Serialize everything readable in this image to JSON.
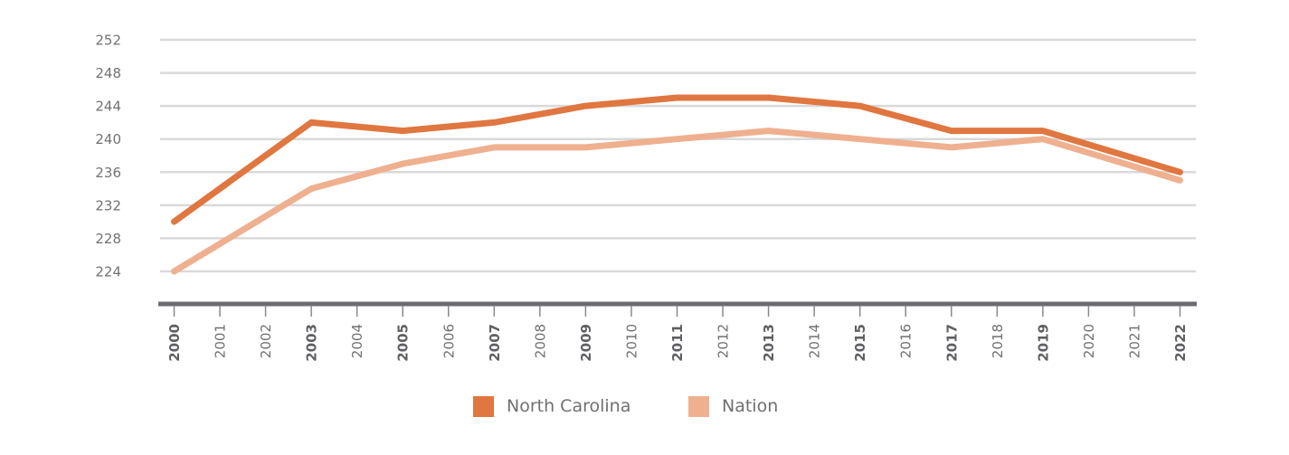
{
  "chart_data": {
    "type": "line",
    "title": "",
    "xlabel": "",
    "ylabel": "",
    "x": [
      2000,
      2001,
      2002,
      2003,
      2004,
      2005,
      2006,
      2007,
      2008,
      2009,
      2010,
      2011,
      2012,
      2013,
      2014,
      2015,
      2016,
      2017,
      2018,
      2019,
      2020,
      2021,
      2022
    ],
    "x_tick_labels": [
      "2000",
      "2001",
      "2002",
      "2003",
      "2004",
      "2005",
      "2006",
      "2007",
      "2008",
      "2009",
      "2010",
      "2011",
      "2012",
      "2013",
      "2014",
      "2015",
      "2016",
      "2017",
      "2018",
      "2019",
      "2020",
      "2021",
      "2022"
    ],
    "bold_x_ticks": [
      "2000",
      "2003",
      "2005",
      "2007",
      "2009",
      "2011",
      "2013",
      "2015",
      "2017",
      "2019",
      "2022"
    ],
    "ylim": [
      224,
      252
    ],
    "y_ticks": [
      224,
      228,
      232,
      236,
      240,
      244,
      248,
      252
    ],
    "y_tick_labels": [
      "224",
      "228",
      "232",
      "236",
      "240",
      "244",
      "248",
      "252"
    ],
    "grid": true,
    "legend_position": "bottom-center",
    "series": [
      {
        "name": "North Carolina",
        "color": "#E07640",
        "points": [
          {
            "x": 2000,
            "y": 230
          },
          {
            "x": 2003,
            "y": 242
          },
          {
            "x": 2005,
            "y": 241
          },
          {
            "x": 2007,
            "y": 242
          },
          {
            "x": 2009,
            "y": 244
          },
          {
            "x": 2011,
            "y": 245
          },
          {
            "x": 2013,
            "y": 245
          },
          {
            "x": 2015,
            "y": 244
          },
          {
            "x": 2017,
            "y": 241
          },
          {
            "x": 2019,
            "y": 241
          },
          {
            "x": 2022,
            "y": 236
          }
        ]
      },
      {
        "name": "Nation",
        "color": "#EFB08F",
        "points": [
          {
            "x": 2000,
            "y": 224
          },
          {
            "x": 2003,
            "y": 234
          },
          {
            "x": 2005,
            "y": 237
          },
          {
            "x": 2007,
            "y": 239
          },
          {
            "x": 2009,
            "y": 239
          },
          {
            "x": 2011,
            "y": 240
          },
          {
            "x": 2013,
            "y": 241
          },
          {
            "x": 2015,
            "y": 240
          },
          {
            "x": 2017,
            "y": 239
          },
          {
            "x": 2019,
            "y": 240
          },
          {
            "x": 2022,
            "y": 235
          }
        ]
      }
    ]
  },
  "legend": {
    "items": [
      {
        "label": "North Carolina",
        "color": "#E07640"
      },
      {
        "label": "Nation",
        "color": "#EFB08F"
      }
    ]
  },
  "colors": {
    "grid": "#d9d9d9",
    "axis": "#6b6c70",
    "tick": "#8a8a8a"
  }
}
